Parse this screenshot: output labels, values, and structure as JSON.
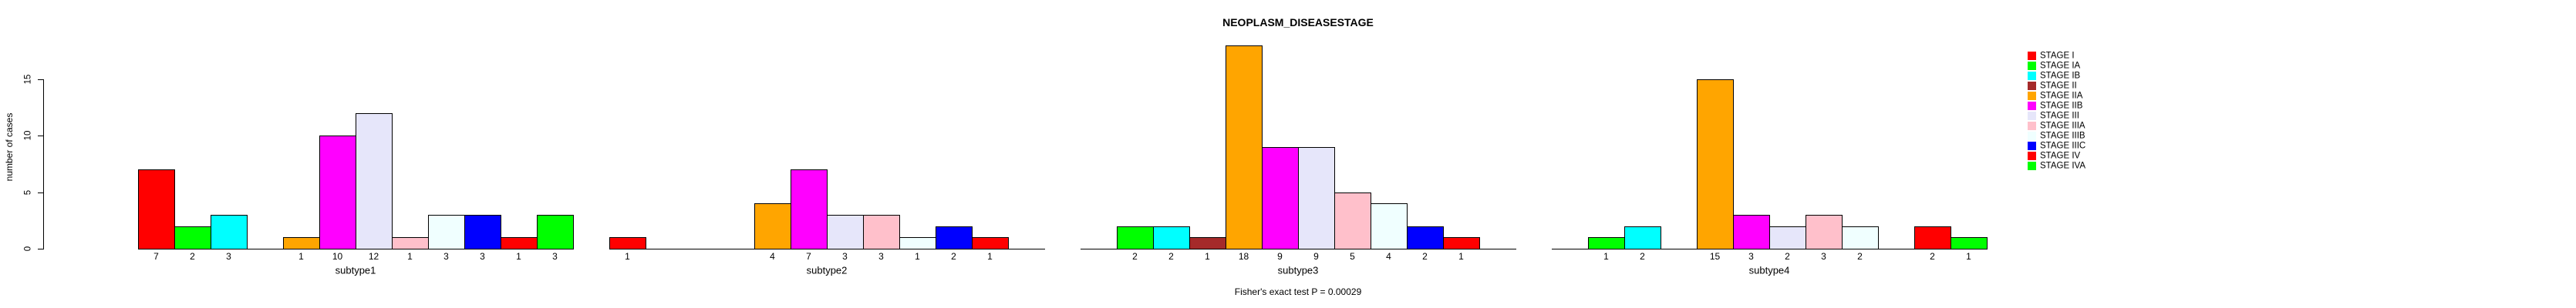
{
  "chart_data": {
    "type": "bar",
    "title": "NEOPLASM_DISEASESTAGE",
    "ylabel": "number of cases",
    "annotation": "Fisher's exact test P = 0.00029",
    "categories": [
      "subtype1",
      "subtype2",
      "subtype3",
      "subtype4"
    ],
    "yticks": [
      0,
      5,
      10,
      15
    ],
    "ylim": [
      0,
      15
    ],
    "grid": false,
    "legend_position": "right",
    "bar_value_labels": true,
    "zero_value_bars_hidden": true,
    "series": [
      {
        "name": "STAGE I",
        "color": "#FF0000",
        "values": [
          7,
          1,
          0,
          0
        ]
      },
      {
        "name": "STAGE IA",
        "color": "#00FF00",
        "values": [
          2,
          0,
          2,
          1
        ]
      },
      {
        "name": "STAGE IB",
        "color": "#00FFFF",
        "values": [
          3,
          0,
          2,
          2
        ]
      },
      {
        "name": "STAGE II",
        "color": "#A52A2A",
        "values": [
          0,
          0,
          1,
          0
        ]
      },
      {
        "name": "STAGE IIA",
        "color": "#FFA500",
        "values": [
          1,
          4,
          18,
          15
        ]
      },
      {
        "name": "STAGE IIB",
        "color": "#FF00FF",
        "values": [
          10,
          7,
          9,
          3
        ]
      },
      {
        "name": "STAGE III",
        "color": "#E6E6FA",
        "values": [
          12,
          3,
          9,
          2
        ]
      },
      {
        "name": "STAGE IIIA",
        "color": "#FFC0CB",
        "values": [
          1,
          3,
          5,
          3
        ]
      },
      {
        "name": "STAGE IIIB",
        "color": "#F0FFFF",
        "values": [
          3,
          1,
          4,
          2
        ]
      },
      {
        "name": "STAGE IIIC",
        "color": "#0000FF",
        "values": [
          3,
          2,
          2,
          0
        ]
      },
      {
        "name": "STAGE IV",
        "color": "#FF0000",
        "values": [
          1,
          1,
          1,
          2
        ]
      },
      {
        "name": "STAGE IVA",
        "color": "#00FF00",
        "values": [
          3,
          0,
          0,
          1
        ]
      }
    ]
  }
}
